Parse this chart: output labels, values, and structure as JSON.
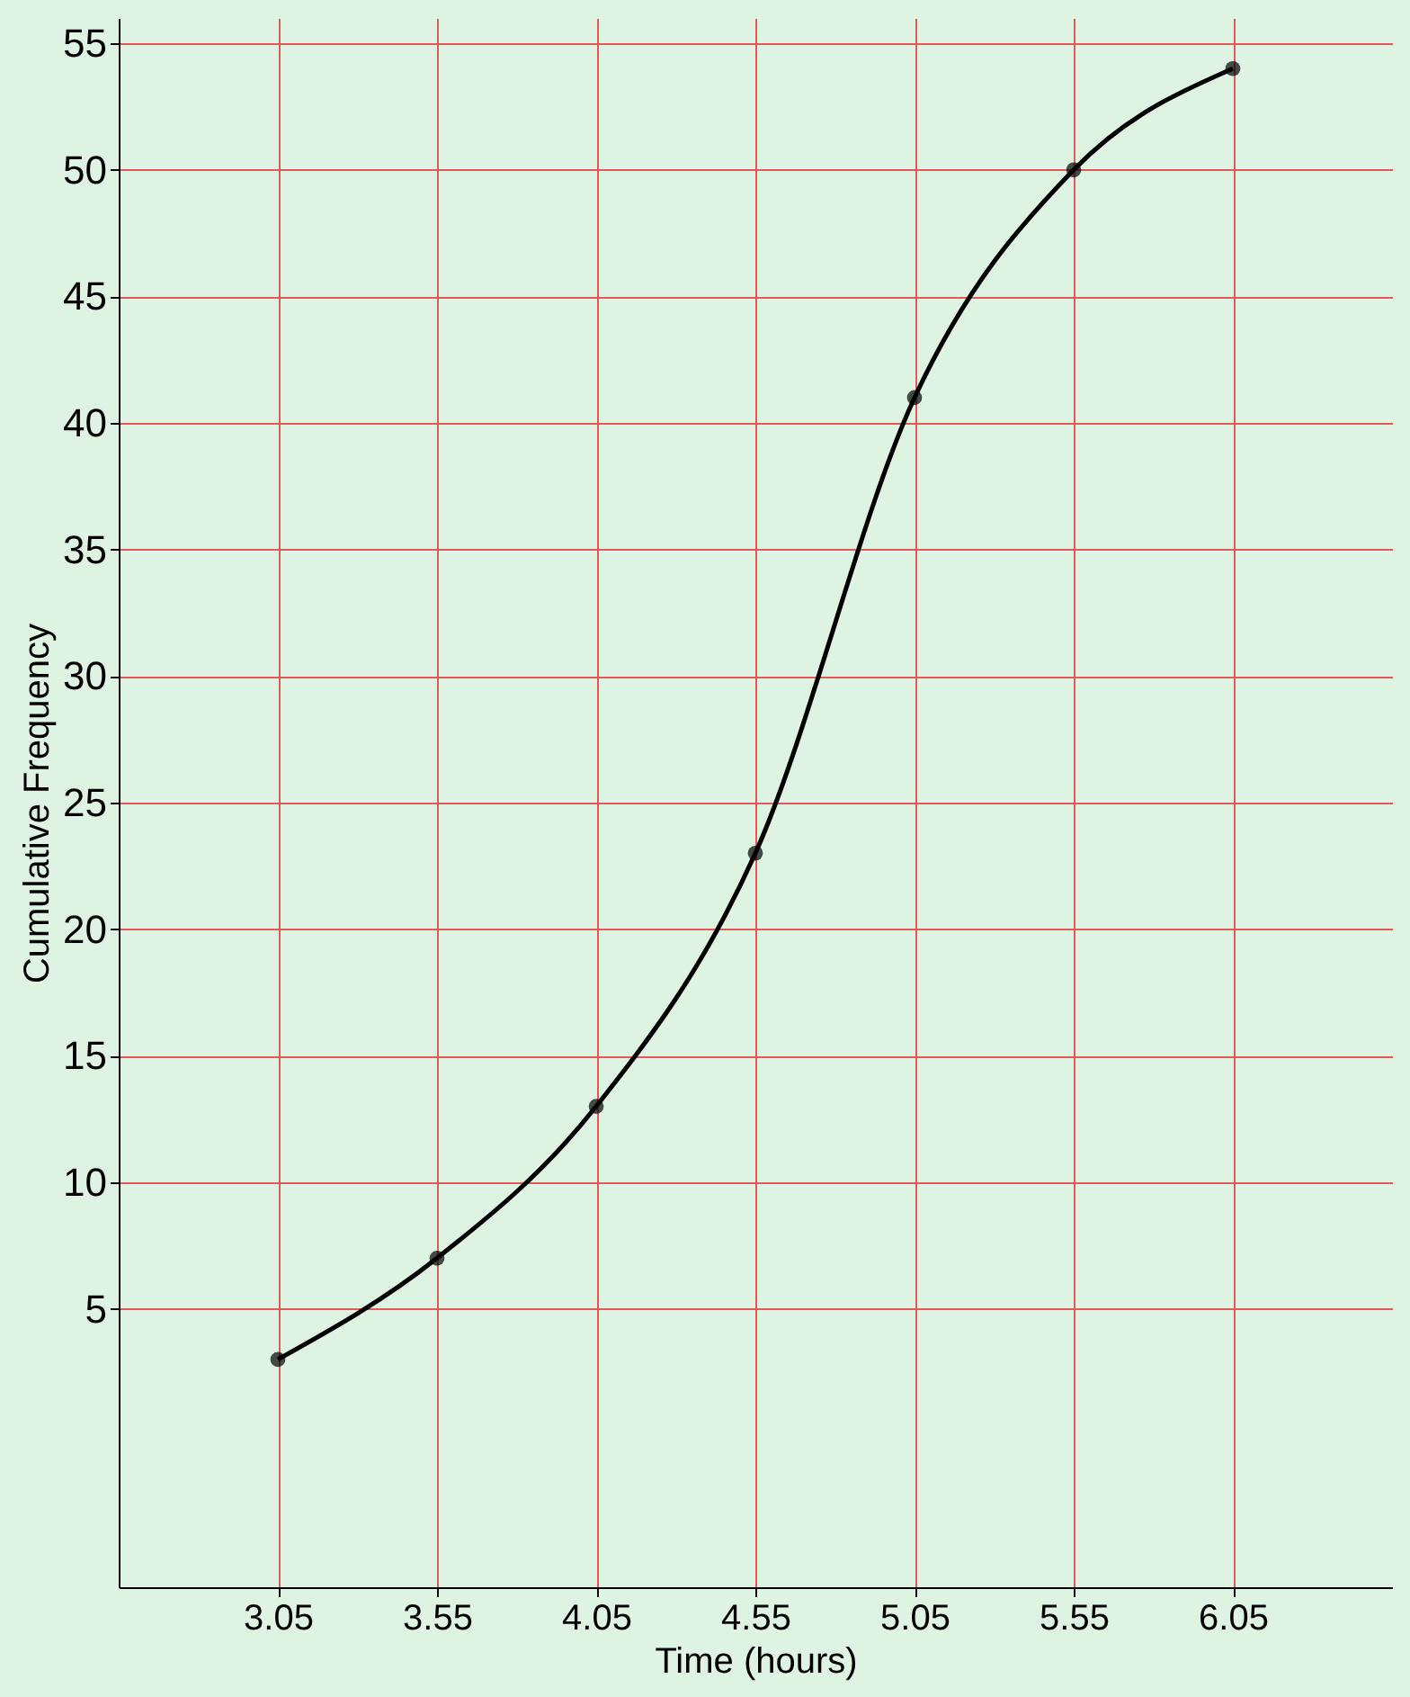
{
  "chart_data": {
    "type": "line",
    "xlabel": "Time (hours)",
    "ylabel": "Cumulative Frequency",
    "x": [
      3.05,
      3.55,
      4.05,
      4.55,
      5.05,
      5.55,
      6.05
    ],
    "series": [
      {
        "color": "#000000",
        "values": [
          3,
          7,
          13,
          23,
          41,
          50,
          54
        ]
      }
    ],
    "xlim": [
      2.55,
      6.55
    ],
    "xticks": [
      3.05,
      3.55,
      4.05,
      4.55,
      5.05,
      5.55,
      6.05
    ],
    "ylim": [
      -6,
      56
    ],
    "yticks": [
      5,
      10,
      15,
      20,
      25,
      30,
      35,
      40,
      45,
      50,
      55
    ],
    "grid": true,
    "marker": "circle",
    "line_style": "solid"
  }
}
